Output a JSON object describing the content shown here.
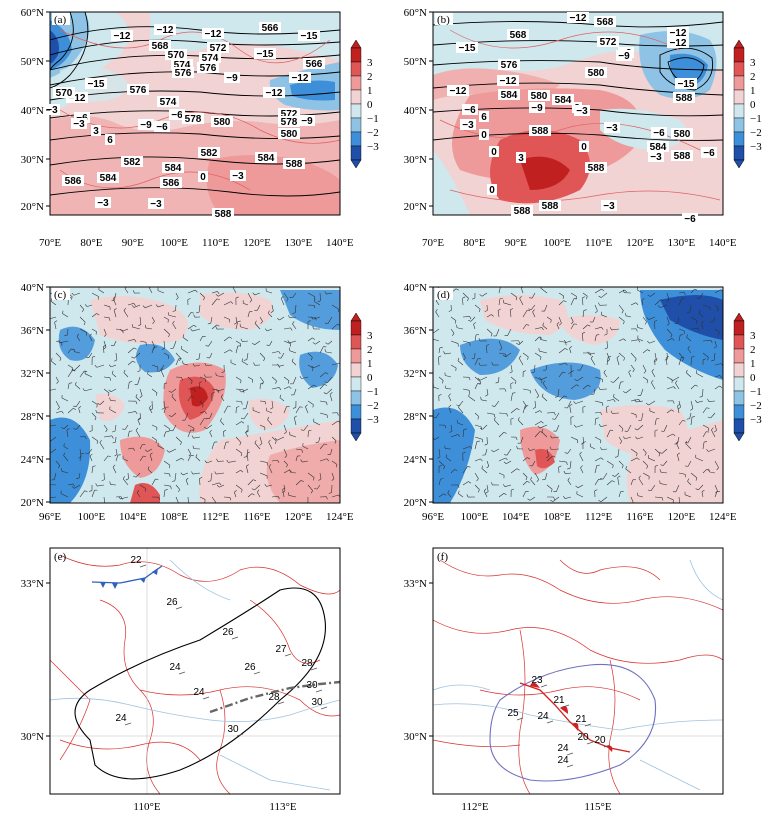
{
  "colors": {
    "positive": [
      "#f2d3d3",
      "#ef9a9a",
      "#e05555",
      "#c02020"
    ],
    "negative": [
      "#cfe8ee",
      "#8ec3e6",
      "#3d8fd9",
      "#1f4fa8"
    ],
    "contour": "#000000",
    "red_contour": "#e06060",
    "border_red": "#d83030",
    "river_blue": "#9cc3e0",
    "front_blue": "#3060c0",
    "front_red": "#d02020",
    "outline_purple": "#7070c0",
    "shear_gray": "#666666"
  },
  "colorbar": {
    "ticks": [
      "3",
      "2",
      "1",
      "0",
      "−1",
      "−2",
      "−3"
    ]
  },
  "panels": {
    "a": {
      "label": "(a)",
      "lat_ticks": [
        "60°N",
        "50°N",
        "40°N",
        "30°N",
        "20°N"
      ],
      "lon_ticks": [
        "70°E",
        "80°E",
        "90°E",
        "100°E",
        "110°E",
        "120°E",
        "130°E",
        "140°E"
      ],
      "contour_labels": [
        "−12",
        "−12",
        "568",
        "570",
        "574",
        "576",
        "−12",
        "572",
        "566",
        "−15",
        "−15",
        "−12",
        "−15",
        "574",
        "576",
        "−9",
        "566",
        "−12",
        "570",
        "−6",
        "574",
        "−12",
        "572",
        "576",
        "578",
        "580",
        "−9",
        "−6",
        "−9",
        "578",
        "580",
        "−6",
        "582",
        "584",
        "586",
        "588",
        "584",
        "−3",
        "0",
        "−3",
        "−3",
        "−3",
        "582",
        "586",
        "584",
        "588",
        "3",
        "−3",
        "6"
      ]
    },
    "b": {
      "label": "(b)",
      "lat_ticks": [
        "60°N",
        "50°N",
        "40°N",
        "30°N",
        "20°N"
      ],
      "lon_ticks": [
        "70°E",
        "80°E",
        "90°E",
        "100°E",
        "110°E",
        "120°E",
        "130°E",
        "140°E"
      ],
      "contour_labels": [
        "−12",
        "568",
        "−12",
        "568",
        "−15",
        "572",
        "−9",
        "576",
        "−12",
        "−12",
        "580",
        "−9",
        "−12",
        "584",
        "−6",
        "580",
        "−9",
        "584",
        "−15",
        "588",
        "−3",
        "3",
        "6",
        "0",
        "588",
        "0",
        "−3",
        "−6",
        "580",
        "584",
        "−6",
        "588",
        "3",
        "0",
        "588",
        "−3",
        "588",
        "0",
        "588",
        "−3",
        "−3",
        "−6"
      ]
    },
    "c": {
      "label": "(c)",
      "lat_ticks": [
        "40°N",
        "36°N",
        "32°N",
        "28°N",
        "24°N",
        "20°N"
      ],
      "lon_ticks": [
        "96°E",
        "100°E",
        "104°E",
        "108°E",
        "112°E",
        "116°E",
        "120°E",
        "124°E"
      ]
    },
    "d": {
      "label": "(d)",
      "lat_ticks": [
        "40°N",
        "36°N",
        "32°N",
        "28°N",
        "24°N",
        "20°N"
      ],
      "lon_ticks": [
        "96°E",
        "100°E",
        "104°E",
        "108°E",
        "112°E",
        "116°E",
        "120°E",
        "124°E"
      ]
    },
    "e": {
      "label": "(e)",
      "lat_ticks": [
        "33°N",
        "30°N"
      ],
      "lon_ticks": [
        "110°E",
        "113°E"
      ],
      "station_values": [
        "22",
        "26",
        "26",
        "27",
        "24",
        "26",
        "28",
        "24",
        "30",
        "28",
        "30",
        "24",
        "30"
      ]
    },
    "f": {
      "label": "(f)",
      "lat_ticks": [
        "33°N",
        "30°N"
      ],
      "lon_ticks": [
        "112°E",
        "115°E"
      ],
      "station_values": [
        "23",
        "25",
        "21",
        "24",
        "21",
        "20",
        "20",
        "24",
        "24"
      ]
    }
  }
}
